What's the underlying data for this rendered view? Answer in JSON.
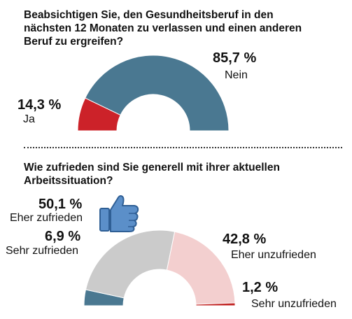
{
  "colors": {
    "teal": "#4a7891",
    "red": "#cc2229",
    "grey": "#cbcbcb",
    "pink": "#f3cfcf",
    "dark_red": "#c0201f",
    "thumb": "#5b8fc9"
  },
  "icons": [
    "thumbs-up-icon"
  ],
  "chart_data": [
    {
      "type": "pie",
      "style": "half-donut",
      "title": "Beabsichtigen Sie, den Gesundheitsberuf in den nächsten 12 Monaten zu verlassen und einen anderen Beruf zu ergreifen?",
      "slices": [
        {
          "label": "Ja",
          "value": 14.3,
          "value_text": "14,3 %",
          "color": "#cc2229"
        },
        {
          "label": "Nein",
          "value": 85.7,
          "value_text": "85,7 %",
          "color": "#4a7891"
        }
      ]
    },
    {
      "type": "pie",
      "style": "half-donut",
      "title": "Wie zufrieden sind Sie generell mit ihrer aktuellen Arbeitssituation?",
      "slices": [
        {
          "label": "Sehr zufrieden",
          "value": 6.9,
          "value_text": "6,9 %",
          "color": "#4a7891"
        },
        {
          "label": "Eher zufrieden",
          "value": 50.1,
          "value_text": "50,1 %",
          "color": "#cbcbcb"
        },
        {
          "label": "Eher unzufrieden",
          "value": 42.8,
          "value_text": "42,8 %",
          "color": "#f3cfcf"
        },
        {
          "label": "Sehr unzufrieden",
          "value": 1.2,
          "value_text": "1,2 %",
          "color": "#c0201f"
        }
      ]
    }
  ]
}
